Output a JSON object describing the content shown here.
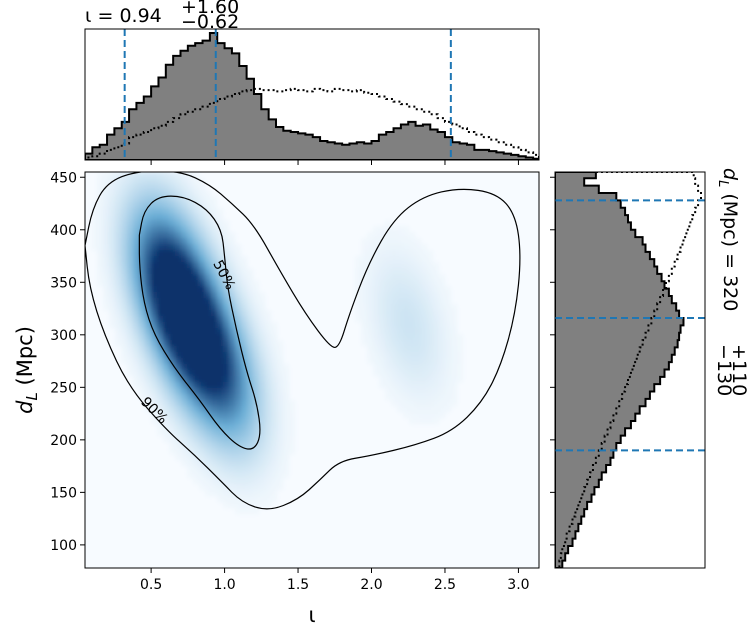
{
  "chart_data": {
    "type": "corner-plot",
    "top_title": {
      "param": "ι",
      "value": "0.94",
      "upper": "+1.60",
      "lower": "−0.62"
    },
    "right_title": {
      "param": "d",
      "sub": "L",
      "units": " (Mpc) = ",
      "value": "320",
      "upper": "+110",
      "lower": "−130"
    },
    "main": {
      "type": "heatmap",
      "xlabel": "ι",
      "ylabel": {
        "main": "d",
        "sub": "L",
        "units": " (Mpc)"
      },
      "xlim": [
        0.05,
        3.14
      ],
      "ylim": [
        78,
        455
      ],
      "xticks": [
        "0.5",
        "1.0",
        "1.5",
        "2.0",
        "2.5",
        "3.0"
      ],
      "yticks": [
        "100",
        "150",
        "200",
        "250",
        "300",
        "350",
        "400",
        "450"
      ],
      "density_peaks": [
        {
          "x": 0.78,
          "y": 305,
          "weight": 1.0
        },
        {
          "x": 0.6,
          "y": 360,
          "weight": 0.8
        },
        {
          "x": 1.0,
          "y": 255,
          "weight": 0.55
        },
        {
          "x": 2.25,
          "y": 310,
          "weight": 0.15
        }
      ],
      "contours": [
        {
          "label": "50%",
          "points": [
            [
              0.42,
              395
            ],
            [
              0.45,
              418
            ],
            [
              0.55,
              432
            ],
            [
              0.72,
              432
            ],
            [
              0.88,
              420
            ],
            [
              0.98,
              400
            ],
            [
              1.0,
              375
            ],
            [
              1.02,
              345
            ],
            [
              1.08,
              305
            ],
            [
              1.15,
              265
            ],
            [
              1.22,
              235
            ],
            [
              1.25,
              205
            ],
            [
              1.2,
              190
            ],
            [
              1.1,
              193
            ],
            [
              0.97,
              210
            ],
            [
              0.83,
              238
            ],
            [
              0.66,
              268
            ],
            [
              0.52,
              300
            ],
            [
              0.45,
              330
            ],
            [
              0.42,
              365
            ],
            [
              0.42,
              395
            ]
          ]
        },
        {
          "label": "90%",
          "points": [
            [
              0.05,
              385
            ],
            [
              0.1,
              420
            ],
            [
              0.2,
              445
            ],
            [
              0.4,
              456
            ],
            [
              0.7,
              456
            ],
            [
              0.9,
              443
            ],
            [
              1.05,
              425
            ],
            [
              1.2,
              405
            ],
            [
              1.38,
              360
            ],
            [
              1.55,
              320
            ],
            [
              1.72,
              288
            ],
            [
              1.78,
              288
            ],
            [
              1.85,
              320
            ],
            [
              1.98,
              368
            ],
            [
              2.15,
              410
            ],
            [
              2.35,
              432
            ],
            [
              2.6,
              440
            ],
            [
              2.85,
              435
            ],
            [
              2.98,
              415
            ],
            [
              3.02,
              375
            ],
            [
              2.98,
              320
            ],
            [
              2.88,
              270
            ],
            [
              2.75,
              235
            ],
            [
              2.55,
              208
            ],
            [
              2.3,
              195
            ],
            [
              2.0,
              185
            ],
            [
              1.78,
              180
            ],
            [
              1.65,
              162
            ],
            [
              1.5,
              143
            ],
            [
              1.3,
              132
            ],
            [
              1.12,
              140
            ],
            [
              0.98,
              160
            ],
            [
              0.8,
              185
            ],
            [
              0.6,
              210
            ],
            [
              0.35,
              250
            ],
            [
              0.18,
              300
            ],
            [
              0.08,
              345
            ],
            [
              0.05,
              385
            ]
          ]
        }
      ]
    },
    "top_hist": {
      "xlim": [
        0.05,
        3.14
      ],
      "quantile_lines": [
        0.32,
        0.94,
        2.54
      ],
      "bin_edges": [
        0.05,
        0.1,
        0.15,
        0.2,
        0.25,
        0.3,
        0.35,
        0.4,
        0.45,
        0.5,
        0.55,
        0.6,
        0.65,
        0.7,
        0.75,
        0.8,
        0.85,
        0.9,
        0.95,
        1.0,
        1.05,
        1.1,
        1.15,
        1.2,
        1.25,
        1.3,
        1.35,
        1.4,
        1.45,
        1.5,
        1.55,
        1.6,
        1.65,
        1.7,
        1.75,
        1.8,
        1.85,
        1.9,
        1.95,
        2.0,
        2.05,
        2.1,
        2.15,
        2.2,
        2.25,
        2.3,
        2.35,
        2.4,
        2.45,
        2.5,
        2.55,
        2.6,
        2.65,
        2.7,
        2.75,
        2.8,
        2.85,
        2.9,
        2.95,
        3.0,
        3.05,
        3.1,
        3.14
      ],
      "posterior": [
        0.05,
        0.1,
        0.12,
        0.2,
        0.25,
        0.3,
        0.4,
        0.45,
        0.5,
        0.58,
        0.65,
        0.75,
        0.82,
        0.86,
        0.9,
        0.92,
        0.94,
        1.0,
        0.92,
        0.88,
        0.84,
        0.74,
        0.64,
        0.52,
        0.4,
        0.32,
        0.26,
        0.23,
        0.22,
        0.21,
        0.2,
        0.18,
        0.15,
        0.14,
        0.13,
        0.12,
        0.13,
        0.14,
        0.13,
        0.15,
        0.2,
        0.22,
        0.25,
        0.28,
        0.3,
        0.27,
        0.28,
        0.24,
        0.22,
        0.18,
        0.14,
        0.13,
        0.12,
        0.08,
        0.08,
        0.07,
        0.06,
        0.05,
        0.04,
        0.03,
        0.02,
        0.01
      ],
      "prior": [
        0.02,
        0.03,
        0.05,
        0.08,
        0.1,
        0.13,
        0.18,
        0.2,
        0.22,
        0.25,
        0.27,
        0.3,
        0.33,
        0.36,
        0.38,
        0.4,
        0.42,
        0.45,
        0.48,
        0.5,
        0.52,
        0.54,
        0.55,
        0.56,
        0.55,
        0.55,
        0.54,
        0.55,
        0.56,
        0.55,
        0.54,
        0.56,
        0.55,
        0.54,
        0.56,
        0.55,
        0.54,
        0.55,
        0.53,
        0.52,
        0.5,
        0.48,
        0.46,
        0.44,
        0.42,
        0.4,
        0.38,
        0.36,
        0.33,
        0.3,
        0.28,
        0.25,
        0.22,
        0.2,
        0.18,
        0.16,
        0.14,
        0.12,
        0.1,
        0.08,
        0.06,
        0.04
      ]
    },
    "right_hist": {
      "ylim": [
        78,
        455
      ],
      "quantile_lines": [
        190,
        316,
        428
      ],
      "bin_edges": [
        78,
        85,
        92,
        99,
        106,
        113,
        120,
        127,
        134,
        141,
        148,
        155,
        162,
        169,
        176,
        183,
        190,
        197,
        204,
        211,
        218,
        225,
        232,
        239,
        246,
        253,
        260,
        267,
        274,
        281,
        288,
        295,
        302,
        309,
        316,
        323,
        330,
        337,
        344,
        351,
        358,
        365,
        372,
        379,
        386,
        393,
        400,
        407,
        414,
        421,
        428,
        435,
        442,
        449,
        455
      ],
      "posterior": [
        0.05,
        0.07,
        0.09,
        0.12,
        0.14,
        0.16,
        0.18,
        0.2,
        0.22,
        0.25,
        0.27,
        0.3,
        0.32,
        0.35,
        0.38,
        0.4,
        0.42,
        0.45,
        0.48,
        0.52,
        0.55,
        0.58,
        0.62,
        0.65,
        0.68,
        0.72,
        0.75,
        0.78,
        0.8,
        0.82,
        0.84,
        0.85,
        0.86,
        0.88,
        0.85,
        0.83,
        0.8,
        0.78,
        0.75,
        0.73,
        0.7,
        0.68,
        0.65,
        0.62,
        0.6,
        0.55,
        0.52,
        0.5,
        0.48,
        0.45,
        0.42,
        0.3,
        0.2,
        0.28
      ],
      "prior": [
        0.03,
        0.04,
        0.05,
        0.07,
        0.08,
        0.1,
        0.12,
        0.14,
        0.16,
        0.18,
        0.2,
        0.22,
        0.24,
        0.26,
        0.28,
        0.3,
        0.32,
        0.34,
        0.36,
        0.38,
        0.4,
        0.42,
        0.44,
        0.46,
        0.48,
        0.5,
        0.52,
        0.54,
        0.56,
        0.58,
        0.6,
        0.62,
        0.64,
        0.66,
        0.68,
        0.7,
        0.72,
        0.74,
        0.76,
        0.78,
        0.8,
        0.82,
        0.84,
        0.86,
        0.88,
        0.9,
        0.92,
        0.94,
        0.96,
        0.98,
        1.0,
        0.98,
        0.96,
        0.95
      ]
    },
    "colors": {
      "hist_fill": "#808080",
      "quantile": "#1f77b4",
      "cmap_low": "#f7fbff",
      "cmap_high": "#08306b",
      "line": "#000000"
    }
  }
}
